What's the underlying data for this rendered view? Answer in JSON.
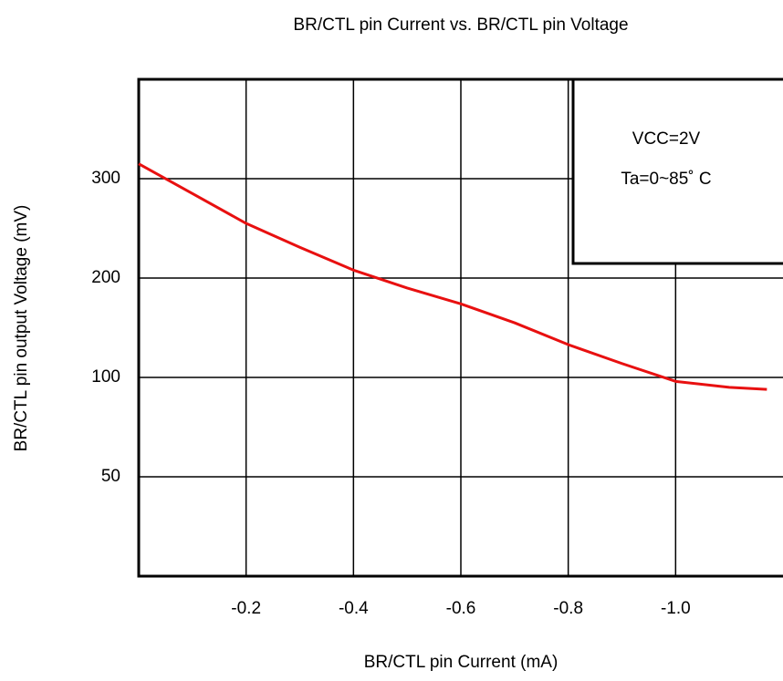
{
  "chart_data": {
    "type": "line",
    "title": "BR/CTL pin Current vs. BR/CTL pin Voltage",
    "x_label": "BR/CTL pin Current (mA)",
    "y_label": "BR/CTL pin output Voltage (mV)",
    "annotations": [
      "VCC=2V",
      "Ta=0~85˚ C"
    ],
    "x": [
      0,
      -0.1,
      -0.2,
      -0.3,
      -0.4,
      -0.5,
      -0.6,
      -0.7,
      -0.8,
      -0.9,
      -1.0,
      -1.1,
      -1.17
    ],
    "series": [
      {
        "name": "BR/CTL pin output Voltage",
        "color": "#e81010",
        "values": [
          315,
          285,
          255,
          231,
          208,
          190,
          174,
          155,
          133,
          114,
          98,
          95,
          94
        ]
      }
    ],
    "xlim": [
      0,
      -1.2
    ],
    "xticks": [
      -0.2,
      -0.4,
      -0.6,
      -0.8,
      {
        "value": -1.0,
        "label": "-1.0"
      }
    ],
    "ylim": [
      0,
      400
    ],
    "yticks": [
      50,
      100,
      200,
      300
    ],
    "grid": true
  }
}
